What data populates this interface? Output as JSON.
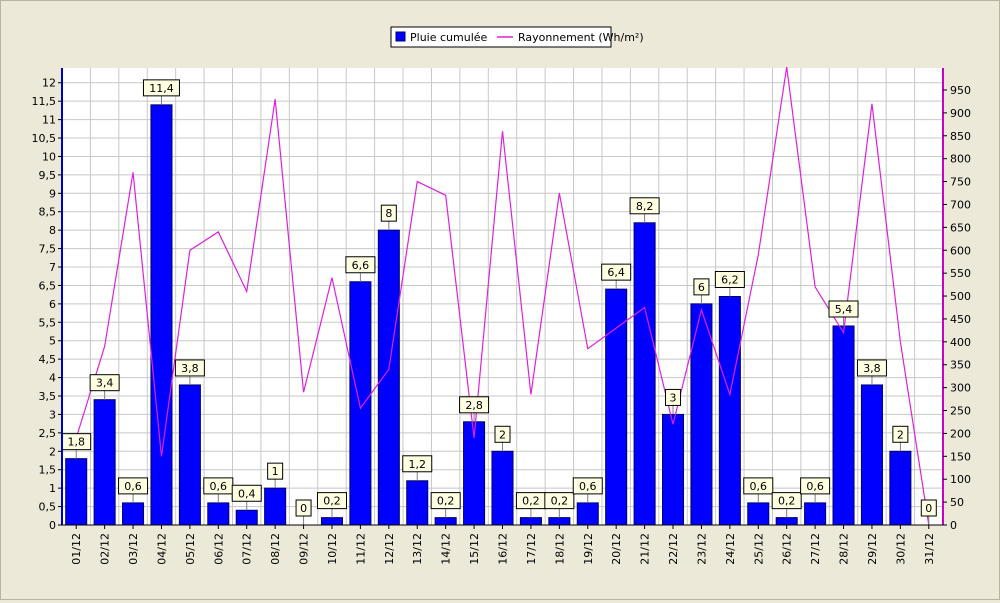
{
  "chart_data": {
    "type": "bar",
    "categories": [
      "01/12",
      "02/12",
      "03/12",
      "04/12",
      "05/12",
      "06/12",
      "07/12",
      "08/12",
      "09/12",
      "10/12",
      "11/12",
      "12/12",
      "13/12",
      "14/12",
      "15/12",
      "16/12",
      "17/12",
      "18/12",
      "19/12",
      "20/12",
      "21/12",
      "22/12",
      "23/12",
      "24/12",
      "25/12",
      "26/12",
      "27/12",
      "28/12",
      "29/12",
      "30/12",
      "31/12"
    ],
    "series": [
      {
        "name": "Pluie cumulée",
        "type": "bar",
        "axis": "left",
        "color": "#0000ff",
        "values": [
          1.8,
          3.4,
          0.6,
          11.4,
          3.8,
          0.6,
          0.4,
          1,
          0,
          0.2,
          6.6,
          8,
          1.2,
          0.2,
          2.8,
          2,
          0.2,
          0.2,
          0.6,
          6.4,
          8.2,
          3,
          6,
          6.2,
          0.6,
          0.2,
          0.6,
          5.4,
          3.8,
          2,
          0
        ],
        "labels": [
          "1,8",
          "3,4",
          "0,6",
          "11,4",
          "3,8",
          "0,6",
          "0,4",
          "1",
          "0",
          "0,2",
          "6,6",
          "8",
          "1,2",
          "0,2",
          "2,8",
          "2",
          "0,2",
          "0,2",
          "0,6",
          "6,4",
          "8,2",
          "3",
          "6",
          "6,2",
          "0,6",
          "0,2",
          "0,6",
          "5,4",
          "3,8",
          "2",
          "0"
        ]
      },
      {
        "name": "Rayonnement (Wh/m²)",
        "type": "line",
        "axis": "right",
        "color": "#e020e0",
        "values": [
          190,
          390,
          770,
          150,
          600,
          640,
          510,
          930,
          290,
          540,
          255,
          340,
          750,
          720,
          190,
          860,
          285,
          725,
          385,
          430,
          475,
          220,
          470,
          285,
          590,
          1000,
          520,
          420,
          920,
          400,
          0
        ]
      }
    ],
    "left_axis": {
      "ylim": [
        0,
        12.4
      ],
      "ticks": [
        "0",
        "0,5",
        "1",
        "1,5",
        "2",
        "2,5",
        "3",
        "3,5",
        "4",
        "4,5",
        "5",
        "5,5",
        "6",
        "6,5",
        "7",
        "7,5",
        "8",
        "8,5",
        "9",
        "9,5",
        "10",
        "10,5",
        "11",
        "11,5",
        "12"
      ]
    },
    "right_axis": {
      "ylim": [
        0,
        998
      ],
      "ticks": [
        "0",
        "50",
        "100",
        "150",
        "200",
        "250",
        "300",
        "350",
        "400",
        "450",
        "500",
        "550",
        "600",
        "650",
        "700",
        "750",
        "800",
        "850",
        "900",
        "950"
      ]
    },
    "legend_position": "top-center",
    "grid": true
  }
}
